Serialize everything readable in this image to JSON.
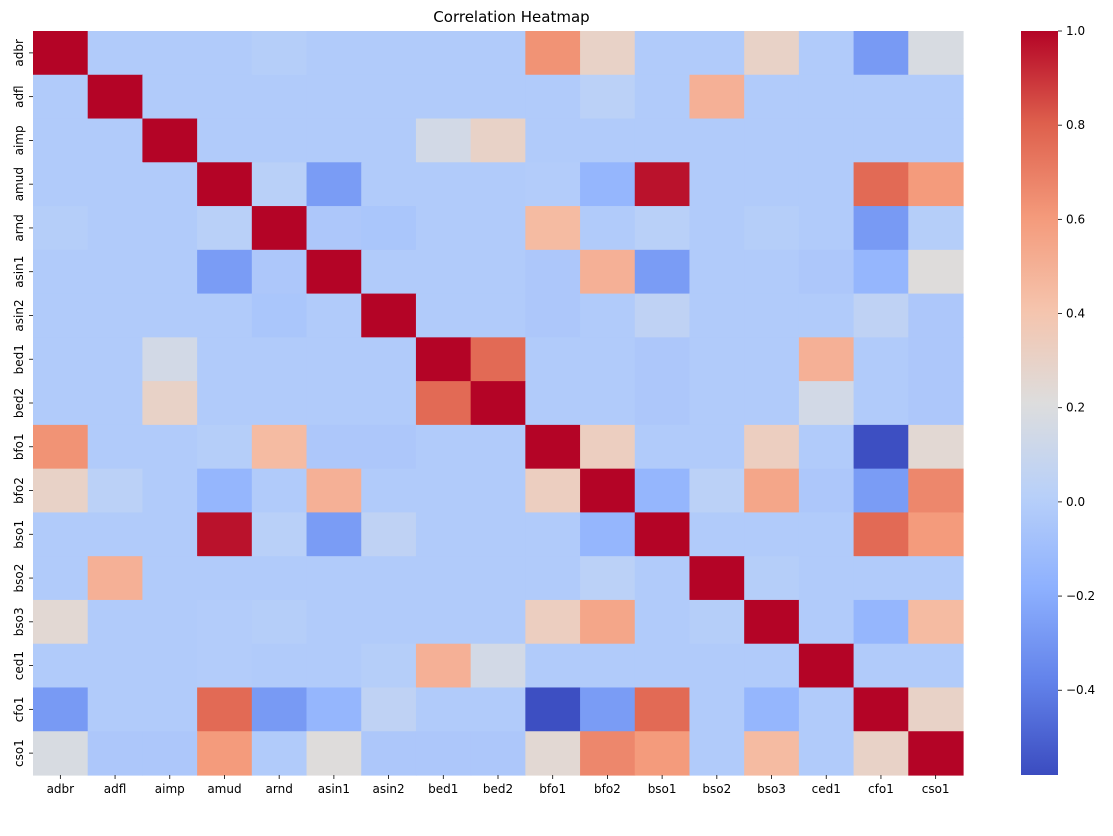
{
  "chart_data": {
    "type": "heatmap",
    "title": "Correlation Heatmap",
    "labels": [
      "adbr",
      "adfl",
      "aimp",
      "amud",
      "arnd",
      "asin1",
      "asin2",
      "bed1",
      "bed2",
      "bfo1",
      "bfo2",
      "bso1",
      "bso2",
      "bso3",
      "ced1",
      "cfo1",
      "cso1"
    ],
    "values": [
      [
        1.0,
        -0.02,
        -0.02,
        -0.02,
        0.0,
        -0.02,
        -0.02,
        -0.02,
        -0.02,
        0.63,
        0.3,
        -0.02,
        -0.02,
        0.3,
        -0.02,
        -0.28,
        0.18
      ],
      [
        -0.02,
        1.0,
        -0.02,
        -0.02,
        -0.02,
        -0.02,
        -0.02,
        -0.02,
        -0.02,
        -0.02,
        0.03,
        -0.02,
        0.5,
        -0.02,
        -0.02,
        -0.02,
        -0.02
      ],
      [
        -0.02,
        -0.02,
        1.0,
        -0.02,
        -0.02,
        -0.02,
        -0.02,
        0.15,
        0.3,
        -0.02,
        -0.02,
        -0.02,
        -0.02,
        -0.02,
        -0.02,
        -0.02,
        -0.02
      ],
      [
        -0.02,
        -0.02,
        -0.02,
        1.0,
        0.02,
        -0.27,
        -0.02,
        -0.02,
        -0.02,
        -0.01,
        -0.15,
        0.97,
        -0.02,
        -0.02,
        -0.02,
        0.77,
        0.6
      ],
      [
        0.0,
        -0.02,
        -0.02,
        0.02,
        1.0,
        -0.04,
        -0.05,
        -0.02,
        -0.02,
        0.45,
        -0.02,
        0.02,
        -0.02,
        0.0,
        -0.02,
        -0.28,
        0.0
      ],
      [
        -0.02,
        -0.02,
        -0.02,
        -0.27,
        -0.04,
        1.0,
        -0.02,
        -0.02,
        -0.02,
        -0.04,
        0.5,
        -0.27,
        -0.02,
        -0.02,
        -0.04,
        -0.15,
        0.22
      ],
      [
        -0.02,
        -0.02,
        -0.02,
        -0.02,
        -0.05,
        -0.02,
        1.0,
        -0.02,
        -0.02,
        -0.04,
        -0.02,
        0.05,
        -0.02,
        -0.02,
        -0.02,
        0.05,
        -0.04
      ],
      [
        -0.02,
        -0.02,
        0.15,
        -0.02,
        -0.02,
        -0.02,
        -0.02,
        1.0,
        0.77,
        -0.02,
        -0.02,
        -0.04,
        -0.02,
        -0.02,
        0.5,
        -0.02,
        -0.04
      ],
      [
        -0.02,
        -0.02,
        0.3,
        -0.02,
        -0.02,
        -0.02,
        -0.02,
        0.77,
        1.0,
        -0.02,
        -0.02,
        -0.04,
        -0.02,
        -0.02,
        0.15,
        -0.02,
        -0.04
      ],
      [
        0.63,
        -0.02,
        -0.02,
        0.0,
        0.45,
        -0.04,
        -0.04,
        -0.02,
        -0.02,
        1.0,
        0.33,
        -0.02,
        -0.02,
        0.33,
        -0.02,
        -0.57,
        0.25
      ],
      [
        0.3,
        0.03,
        -0.02,
        -0.15,
        -0.02,
        0.5,
        -0.02,
        -0.02,
        -0.02,
        0.33,
        1.0,
        -0.15,
        0.03,
        0.55,
        -0.04,
        -0.27,
        0.67
      ],
      [
        -0.02,
        -0.02,
        -0.02,
        0.97,
        0.02,
        -0.27,
        0.05,
        -0.02,
        -0.02,
        -0.02,
        -0.15,
        1.0,
        -0.02,
        -0.02,
        -0.02,
        0.77,
        0.6
      ],
      [
        -0.02,
        0.5,
        -0.02,
        -0.02,
        -0.02,
        -0.02,
        -0.02,
        -0.02,
        -0.02,
        -0.02,
        0.03,
        -0.02,
        1.0,
        0.0,
        -0.02,
        -0.02,
        -0.02
      ],
      [
        0.25,
        -0.02,
        -0.02,
        -0.01,
        0.0,
        -0.02,
        -0.02,
        -0.02,
        -0.02,
        0.33,
        0.55,
        -0.02,
        0.0,
        1.0,
        -0.02,
        -0.15,
        0.45
      ],
      [
        -0.02,
        -0.02,
        -0.02,
        -0.01,
        -0.02,
        -0.02,
        0.0,
        0.5,
        0.15,
        -0.02,
        -0.02,
        -0.02,
        -0.02,
        -0.02,
        1.0,
        -0.02,
        -0.02
      ],
      [
        -0.28,
        -0.02,
        -0.02,
        0.77,
        -0.28,
        -0.15,
        0.05,
        -0.02,
        -0.02,
        -0.57,
        -0.27,
        0.77,
        -0.02,
        -0.15,
        -0.02,
        1.0,
        0.3
      ],
      [
        0.18,
        -0.04,
        -0.04,
        0.6,
        -0.02,
        0.22,
        -0.04,
        -0.04,
        -0.04,
        0.25,
        0.67,
        0.6,
        -0.02,
        0.45,
        -0.02,
        0.3,
        1.0
      ]
    ],
    "colormap": "coolwarm",
    "vmin": -0.58,
    "vmax": 1.0,
    "colorbar_ticks": [
      1.0,
      0.8,
      0.6,
      0.4,
      0.2,
      0.0,
      -0.2,
      -0.4
    ],
    "colorbar_tick_labels": [
      "1.0",
      "0.8",
      "0.6",
      "0.4",
      "0.2",
      "0.0",
      "−0.2",
      "−0.4"
    ],
    "grid": false,
    "legend": "colorbar-right"
  }
}
